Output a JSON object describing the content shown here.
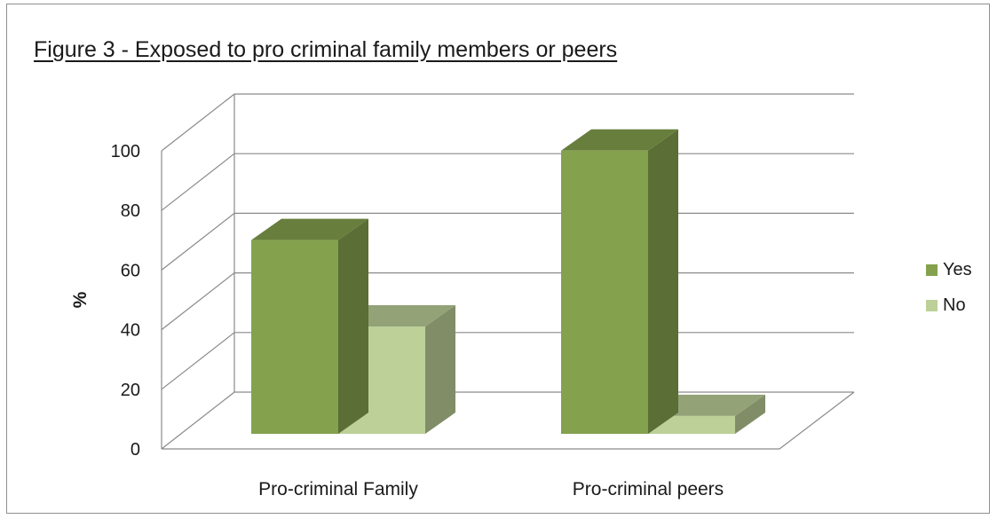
{
  "chart_data": {
    "type": "bar",
    "title": "Figure 3 - Exposed to pro criminal family members or peers",
    "xlabel": "",
    "ylabel": "%",
    "categories": [
      "Pro-criminal Family",
      "Pro-criminal peers"
    ],
    "series": [
      {
        "name": "Yes",
        "values": [
          65,
          95
        ],
        "color": "#84a24e"
      },
      {
        "name": "No",
        "values": [
          36,
          6
        ],
        "color": "#bcd098"
      }
    ],
    "ylim": [
      0,
      100
    ],
    "yticks": [
      0,
      20,
      40,
      60,
      80,
      100
    ],
    "grid": true,
    "legend_position": "right",
    "style": "3d-column"
  }
}
